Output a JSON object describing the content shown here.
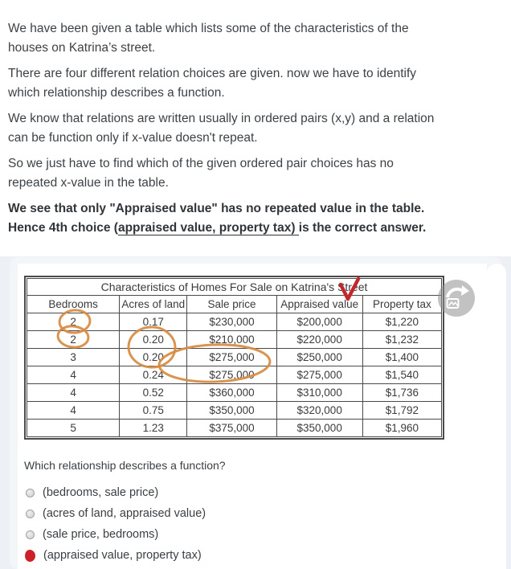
{
  "page": {
    "explanation": {
      "paragraphs": [
        {
          "lines": [
            "We have been given a table which lists some of the characteristics of the",
            "houses on Katrina’s street."
          ]
        },
        {
          "lines": [
            "There are four different relation choices are given. now we have to identify",
            "which relationship describes a function."
          ]
        },
        {
          "lines": [
            "We know that relations are written usually in ordered pairs (x,y) and a relation",
            "can be function only if x-value doesn't repeat."
          ]
        },
        {
          "lines": [
            "So we just have to find which of the given ordered pair choices has no",
            "repeated x-value in the table."
          ]
        }
      ],
      "conclusion_line1": "We see that only \"Appraised value\" has no repeated value in the table.",
      "conclusion_line2": {
        "prefix": "Hence 4th choice (",
        "underlined": "appraised value, property tax) ",
        "suffix": "is the correct answer."
      }
    },
    "attachment": {
      "image_table": {
        "title": "Characteristics of Homes For Sale on Katrina's Street",
        "columns": [
          "Bedrooms",
          "Acres of land",
          "Sale price",
          "Appraised value",
          "Property tax"
        ],
        "rows": [
          [
            "2",
            "0.17",
            "$230,000",
            "$200,000",
            "$1,220"
          ],
          [
            "2",
            "0.20",
            "$210,000",
            "$220,000",
            "$1,232"
          ],
          [
            "3",
            "0.20",
            "$275,000",
            "$250,000",
            "$1,400"
          ],
          [
            "4",
            "0.24",
            "$275,000",
            "$275,000",
            "$1,540"
          ],
          [
            "4",
            "0.52",
            "$360,000",
            "$310,000",
            "$1,736"
          ],
          [
            "4",
            "0.75",
            "$350,000",
            "$320,000",
            "$1,792"
          ],
          [
            "5",
            "1.23",
            "$375,000",
            "$350,000",
            "$1,960"
          ]
        ]
      },
      "question": "Which relationship describes a function?",
      "options": [
        {
          "label": "(bedrooms, sale price)",
          "selected": false
        },
        {
          "label": "(acres of land, appraised value)",
          "selected": false
        },
        {
          "label": "(sale price, bedrooms)",
          "selected": false
        },
        {
          "label": "(appraised value, property tax)",
          "selected": true
        }
      ],
      "annotations": {
        "circled_cells": "bedrooms 2,2; acres 0.20,0.20; sale price $275,000 x2",
        "checkmark": "red check over table title"
      },
      "rotate_button_icon": "rotate-image-icon"
    },
    "colors": {
      "annotation_orange": "#d78b41",
      "annotation_red": "#c2272d",
      "selected_marker_red": "#cc2127",
      "card_bg": "#f3f6f9",
      "page_lower_bg": "#edf1f6",
      "table_header_bg": "#e2e2e2",
      "table_border": "#4a4a4b",
      "text_color": "#3d4246"
    }
  }
}
